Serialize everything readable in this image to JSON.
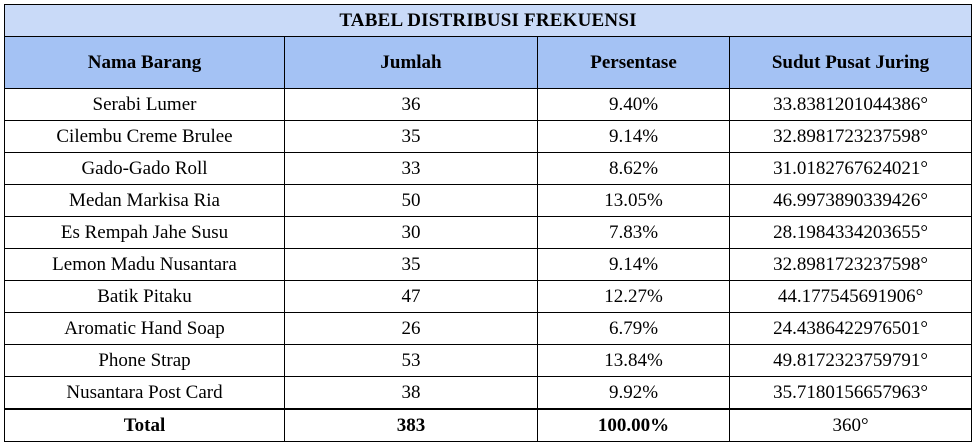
{
  "title": "TABEL DISTRIBUSI FREKUENSI",
  "headers": [
    "Nama Barang",
    "Jumlah",
    "Persentase",
    "Sudut Pusat Juring"
  ],
  "rows": [
    [
      "Serabi Lumer",
      "36",
      "9.40%",
      "33.8381201044386°"
    ],
    [
      "Cilembu Creme Brulee",
      "35",
      "9.14%",
      "32.8981723237598°"
    ],
    [
      "Gado-Gado Roll",
      "33",
      "8.62%",
      "31.0182767624021°"
    ],
    [
      "Medan Markisa Ria",
      "50",
      "13.05%",
      "46.9973890339426°"
    ],
    [
      "Es Rempah Jahe Susu",
      "30",
      "7.83%",
      "28.1984334203655°"
    ],
    [
      "Lemon Madu Nusantara",
      "35",
      "9.14%",
      "32.8981723237598°"
    ],
    [
      "Batik Pitaku",
      "47",
      "12.27%",
      "44.177545691906°"
    ],
    [
      "Aromatic Hand Soap",
      "26",
      "6.79%",
      "24.4386422976501°"
    ],
    [
      "Phone Strap",
      "53",
      "13.84%",
      "49.8172323759791°"
    ],
    [
      "Nusantara Post Card",
      "38",
      "9.92%",
      "35.7180156657963°"
    ]
  ],
  "total": {
    "label": "Total",
    "jumlah": "383",
    "persentase": "100.00%",
    "sudut": "360°"
  },
  "colors": {
    "title_bg": "#c9daf8",
    "header_bg": "#a4c2f4",
    "border": "#000000"
  }
}
